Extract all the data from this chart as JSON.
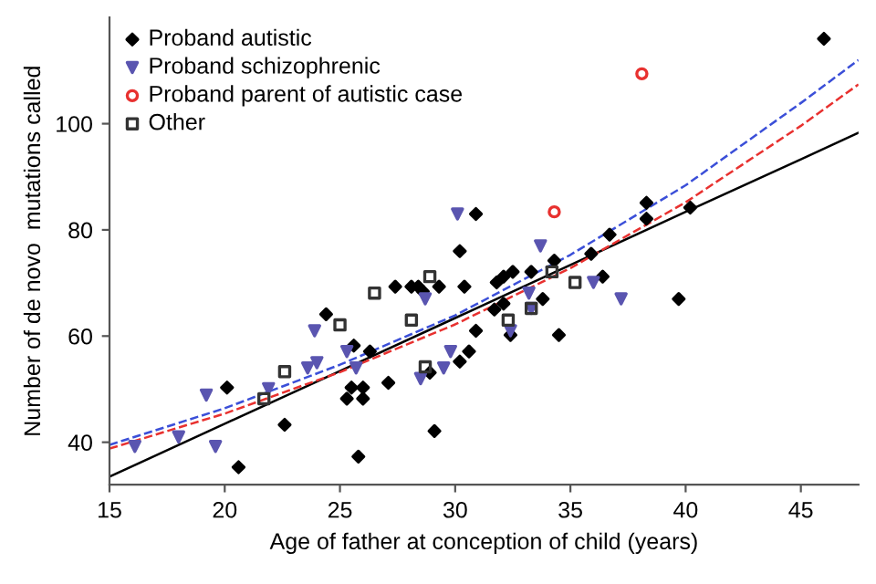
{
  "chart_data": {
    "type": "scatter",
    "xlabel": "Age of father at conception of child (years)",
    "ylabel": "Number of de novo  mutations called",
    "xlim": [
      15,
      47.5
    ],
    "ylim": [
      32,
      120
    ],
    "xticks": [
      15,
      20,
      25,
      30,
      35,
      40,
      45
    ],
    "yticks": [
      40,
      60,
      80,
      100
    ],
    "grid": false,
    "legend": "top left",
    "series": [
      {
        "name": "Proband autistic",
        "color": "#000000",
        "marker": "diamond",
        "x": [
          46.0,
          38.3,
          38.3,
          40.2,
          30.9,
          30.2,
          36.7,
          34.3,
          35.9,
          27.4,
          28.1,
          28.4,
          29.3,
          30.4,
          24.4,
          25.6,
          26.3,
          30.9,
          30.6,
          30.2,
          28.9,
          20.1,
          25.5,
          26.0,
          25.3,
          26.0,
          27.1,
          22.6,
          29.1,
          25.8,
          20.6,
          28.6,
          31.8,
          32.1,
          32.5,
          33.3,
          31.7,
          32.1,
          33.8,
          32.4,
          34.5,
          36.4,
          39.7
        ],
        "values": [
          116,
          85.1,
          82.1,
          84.2,
          83,
          76,
          79.1,
          74.2,
          75.5,
          69.3,
          69.3,
          69.3,
          69.3,
          69.3,
          64.1,
          58.2,
          57.1,
          61,
          57.1,
          55.2,
          53.1,
          50.3,
          50.3,
          50.3,
          48.2,
          48.2,
          51.2,
          43.3,
          42.1,
          37.3,
          35.3,
          68.4,
          70.1,
          71.2,
          72.1,
          72.1,
          65,
          66.1,
          67,
          60.2,
          60.2,
          71.2,
          67
        ]
      },
      {
        "name": "Proband schizophrenic",
        "color": "#5a55b0",
        "marker": "triangle",
        "x": [
          33.7,
          30.1,
          23.9,
          25.3,
          23.6,
          24.0,
          25.7,
          28.7,
          29.8,
          29.5,
          28.5,
          19.2,
          21.9,
          18.0,
          19.6,
          16.1,
          33.2,
          32.4,
          36.0,
          37.2,
          33.3
        ],
        "values": [
          77,
          83,
          61,
          57.1,
          54,
          55,
          54,
          67,
          57.1,
          54,
          52,
          48.9,
          50.1,
          41,
          39.2,
          39.2,
          68.1,
          61,
          70.1,
          67,
          65.2
        ]
      },
      {
        "name": "Proband parent of autistic case",
        "color": "#e8312f",
        "marker": "circle",
        "x": [
          34.3,
          38.1
        ],
        "values": [
          83.4,
          109.4
        ]
      },
      {
        "name": "Other",
        "color": "#333333",
        "marker": "square",
        "x": [
          28.9,
          26.5,
          25.0,
          28.1,
          22.6,
          21.7,
          28.7,
          33.3,
          32.3,
          35.2,
          34.2
        ],
        "values": [
          71.2,
          68.1,
          62.1,
          63,
          53.3,
          48.2,
          54.2,
          65.2,
          63,
          70.1,
          72.1
        ]
      },
      {
        "type": "line",
        "color": "#000000",
        "line_style": "solid",
        "x": [
          15,
          20,
          25,
          30,
          35,
          40,
          45,
          47.5
        ],
        "values": [
          33.5,
          43.5,
          53.4,
          63.4,
          73.4,
          83.4,
          93.3,
          98.3
        ]
      },
      {
        "type": "line",
        "color": "#3b4fd8",
        "line_style": "dashed",
        "x": [
          15,
          20,
          25,
          30,
          35,
          40,
          45,
          47.5
        ],
        "values": [
          39.5,
          46.4,
          54.6,
          63.9,
          75.3,
          88.4,
          103.9,
          112
        ]
      },
      {
        "type": "line",
        "color": "#e8312f",
        "line_style": "dashed",
        "x": [
          15,
          20,
          25,
          30,
          35,
          40,
          45,
          47.5
        ],
        "values": [
          38.8,
          45.4,
          53.2,
          62.2,
          72.8,
          85.2,
          99.6,
          107.4
        ]
      }
    ]
  }
}
